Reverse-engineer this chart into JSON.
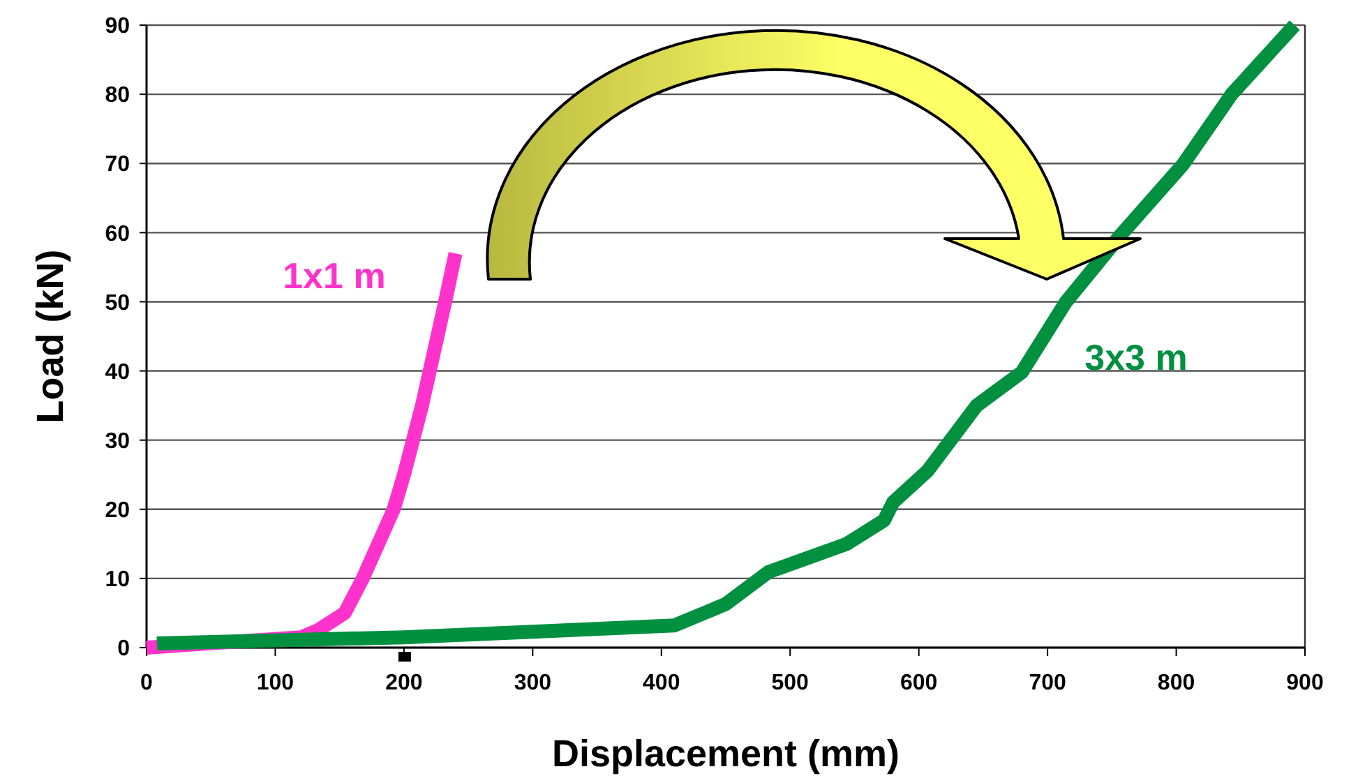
{
  "chart_data": {
    "type": "line",
    "xlabel": "Displacement (mm)",
    "ylabel": "Load (kN)",
    "xlim": [
      0,
      900
    ],
    "xticks": [
      0,
      100,
      200,
      300,
      400,
      500,
      600,
      700,
      800,
      900
    ],
    "ylim": [
      0,
      90
    ],
    "yticks": [
      0,
      10,
      20,
      30,
      40,
      50,
      60,
      70,
      80,
      90
    ],
    "grid": "y",
    "marker": "none",
    "line_style": "solid",
    "series": [
      {
        "name": "1x1 m",
        "color": "#ff33cc",
        "x": [
          0,
          120,
          133,
          154,
          168,
          180,
          192,
          200,
          207,
          214,
          220,
          226,
          232,
          240
        ],
        "values": [
          0,
          1.5,
          2.5,
          5,
          10,
          15,
          20,
          25,
          30,
          35,
          40,
          45,
          50,
          57
        ]
      },
      {
        "name": "3x3 m",
        "color": "#009040",
        "x": [
          8,
          200,
          300,
          410,
          450,
          483,
          544,
          573,
          580,
          607,
          645,
          680,
          714,
          757,
          805,
          843,
          892
        ],
        "values": [
          0.6,
          1.5,
          2.3,
          3.2,
          6.3,
          10.9,
          15,
          18.4,
          21,
          25.6,
          35,
          39.8,
          49.9,
          59.7,
          69.8,
          80,
          90
        ]
      }
    ]
  }
}
